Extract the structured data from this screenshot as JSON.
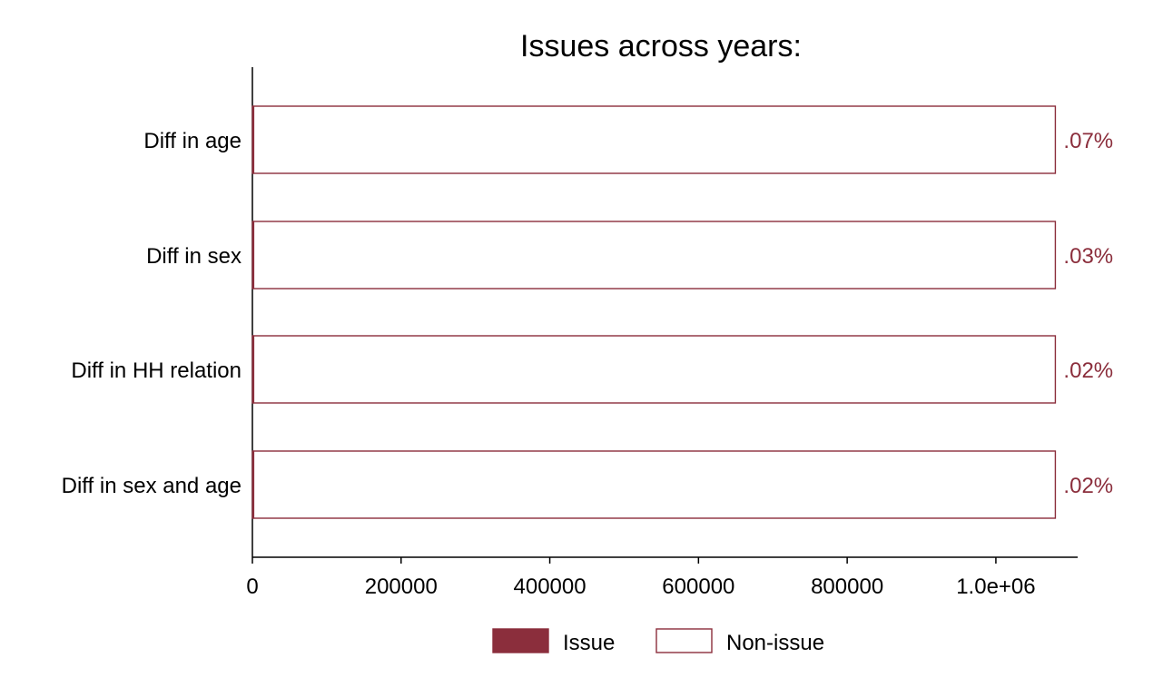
{
  "chart_data": {
    "type": "bar",
    "orientation": "horizontal",
    "stacked": true,
    "title": "Issues across years:",
    "xlabel": "",
    "ylabel": "",
    "categories": [
      "Diff in age",
      "Diff in sex",
      "Diff in HH relation",
      "Diff in sex and age"
    ],
    "series": [
      {
        "name": "Issue",
        "values": [
          756,
          324,
          216,
          216
        ],
        "color": "#8b2e3c",
        "fill": "solid"
      },
      {
        "name": "Non-issue",
        "values": [
          1079244,
          1079676,
          1079784,
          1079784
        ],
        "color": "#8b2e3c",
        "fill": "none"
      }
    ],
    "data_labels": [
      ".07%",
      ".03%",
      ".02%",
      ".02%"
    ],
    "x_ticks": [
      0,
      200000,
      400000,
      600000,
      800000,
      1000000
    ],
    "x_tick_labels": [
      "0",
      "200000",
      "400000",
      "600000",
      "800000",
      "1.0e+06"
    ],
    "xlim": [
      0,
      1110000
    ],
    "grid": false,
    "legend_position": "bottom"
  }
}
